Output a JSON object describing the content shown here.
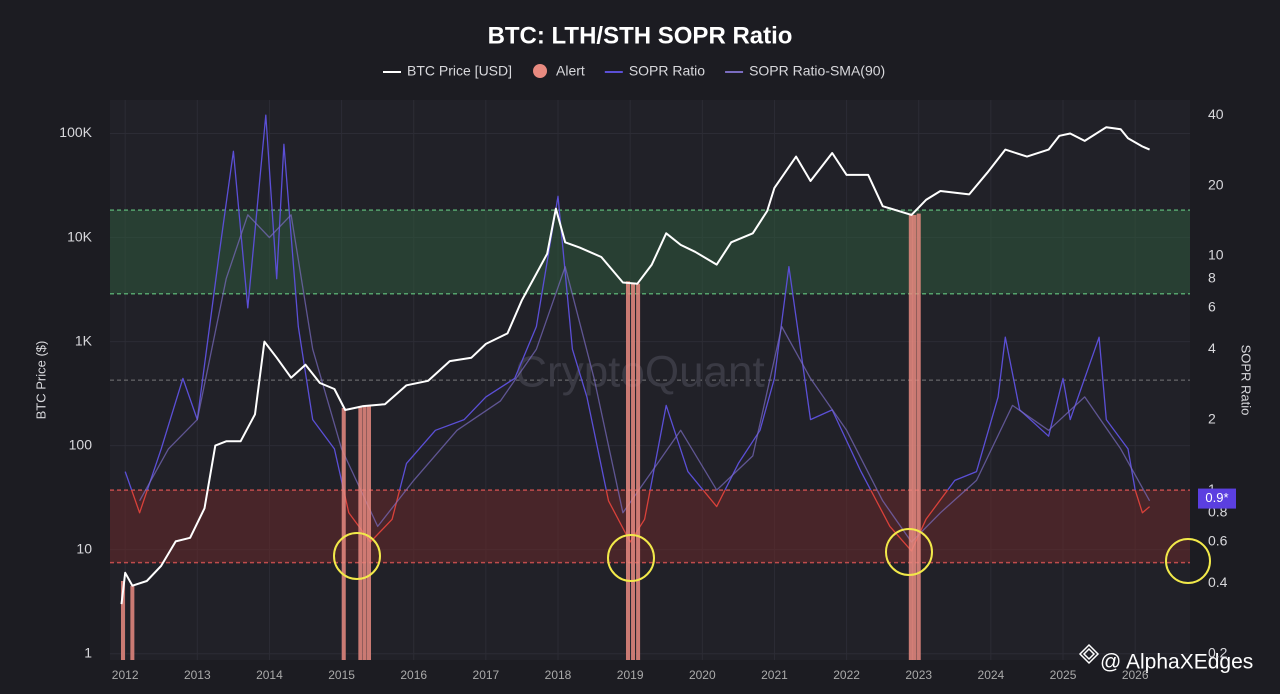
{
  "chart_data": {
    "type": "line",
    "title": "BTC: LTH/STH SOPR Ratio",
    "y_label": "BTC Price ($)",
    "y2_label": "SOPR Ratio",
    "watermark": "CryptoQuant",
    "credit": "@ AlphaXEdges",
    "log_scale": true,
    "xlim": [
      2011.79,
      2026.76
    ],
    "xticks": [
      2012,
      2013,
      2014,
      2015,
      2016,
      2017,
      2018,
      2019,
      2020,
      2021,
      2022,
      2023,
      2024,
      2025,
      2026
    ],
    "ylim": [
      0.87,
      210000
    ],
    "yticks": [
      1,
      10,
      100,
      {
        "value": 1000,
        "label": "1K"
      },
      {
        "value": 10000,
        "label": "10K"
      },
      {
        "value": 100000,
        "label": "100K"
      }
    ],
    "y2lim": [
      0.188,
      46.4
    ],
    "y2ticks": [
      0.2,
      0.4,
      0.6,
      0.8,
      1,
      2,
      4,
      6,
      8,
      10,
      20,
      40
    ],
    "current_label": {
      "value": 0.92,
      "label": "0.9*"
    },
    "bands": [
      {
        "from": 6.9,
        "to": 15.7,
        "color": "#2f5a3c"
      },
      {
        "from": 0.49,
        "to": 1.0,
        "color": "#6a2a2a"
      }
    ],
    "reference_lines": [
      2.95
    ],
    "series": [
      {
        "name": "BTC Price [USD]",
        "type": "line",
        "color": "#ffffff",
        "x": [
          2011.95,
          2012.0,
          2012.1,
          2012.3,
          2012.5,
          2012.7,
          2012.9,
          2013.1,
          2013.25,
          2013.4,
          2013.6,
          2013.8,
          2013.93,
          2014.1,
          2014.3,
          2014.5,
          2014.7,
          2014.9,
          2015.05,
          2015.3,
          2015.6,
          2015.9,
          2016.2,
          2016.5,
          2016.8,
          2017.0,
          2017.3,
          2017.5,
          2017.7,
          2017.85,
          2017.97,
          2018.1,
          2018.3,
          2018.6,
          2018.9,
          2019.1,
          2019.3,
          2019.5,
          2019.7,
          2019.9,
          2020.2,
          2020.4,
          2020.7,
          2020.9,
          2021.0,
          2021.3,
          2021.5,
          2021.8,
          2022.0,
          2022.3,
          2022.5,
          2022.9,
          2023.1,
          2023.3,
          2023.7,
          2023.95,
          2024.2,
          2024.5,
          2024.8,
          2024.95,
          2025.1,
          2025.3,
          2025.6,
          2025.8,
          2025.9,
          2026.1,
          2026.2
        ],
        "values": [
          3,
          6,
          4.5,
          5,
          7,
          12,
          13,
          25,
          100,
          110,
          110,
          200,
          1000,
          700,
          450,
          600,
          400,
          350,
          220,
          240,
          250,
          380,
          420,
          650,
          700,
          950,
          1200,
          2500,
          4500,
          7000,
          19000,
          9000,
          8000,
          6500,
          3700,
          3600,
          5500,
          11000,
          8500,
          7300,
          5500,
          9000,
          11000,
          18000,
          30000,
          60000,
          35000,
          65000,
          40000,
          40000,
          20000,
          16500,
          23000,
          28000,
          26000,
          42000,
          70000,
          60000,
          70000,
          95000,
          100000,
          85000,
          115000,
          110000,
          90000,
          75000,
          70000
        ]
      },
      {
        "name": "Alert",
        "type": "bar",
        "color": "#e88a80",
        "x": [
          2011.97,
          2012.1,
          2015.03,
          2015.26,
          2015.32,
          2015.38,
          2018.97,
          2019.04,
          2019.11,
          2022.89,
          2022.94,
          2023.0
        ],
        "values": [
          5,
          4.5,
          230,
          235,
          240,
          240,
          3800,
          3600,
          3600,
          17000,
          16500,
          17000
        ]
      },
      {
        "name": "SOPR Ratio",
        "type": "line",
        "axis": "y2",
        "color": "#5b4fd6",
        "low_color": "#d9413a",
        "x": [
          2012.0,
          2012.2,
          2012.5,
          2012.8,
          2013.0,
          2013.3,
          2013.5,
          2013.7,
          2013.95,
          2014.1,
          2014.2,
          2014.4,
          2014.6,
          2014.9,
          2015.1,
          2015.4,
          2015.7,
          2015.9,
          2016.3,
          2016.7,
          2017.0,
          2017.4,
          2017.7,
          2018.0,
          2018.2,
          2018.4,
          2018.7,
          2019.0,
          2019.2,
          2019.5,
          2019.8,
          2020.2,
          2020.5,
          2020.8,
          2021.0,
          2021.2,
          2021.5,
          2021.8,
          2022.2,
          2022.6,
          2022.9,
          2023.1,
          2023.5,
          2023.8,
          2024.1,
          2024.2,
          2024.4,
          2024.8,
          2025.0,
          2025.1,
          2025.5,
          2025.6,
          2025.9,
          2026.0,
          2026.1,
          2026.2
        ],
        "values": [
          1.2,
          0.8,
          1.5,
          3,
          2,
          10,
          28,
          6,
          40,
          8,
          30,
          5,
          2,
          1.5,
          0.8,
          0.6,
          0.75,
          1.3,
          1.8,
          2.0,
          2.5,
          3,
          5,
          18,
          4,
          2.5,
          0.9,
          0.6,
          0.75,
          2.3,
          1.2,
          0.85,
          1.3,
          1.8,
          3,
          9,
          2,
          2.2,
          1.2,
          0.7,
          0.55,
          0.75,
          1.1,
          1.2,
          2.5,
          4.5,
          2.2,
          1.7,
          3,
          2,
          4.5,
          2,
          1.5,
          1.0,
          0.8,
          0.85
        ]
      },
      {
        "name": "SOPR Ratio-SMA(90)",
        "type": "line",
        "axis": "y2",
        "color": "#7a6cc0",
        "x": [
          2012.2,
          2012.6,
          2013.0,
          2013.4,
          2013.7,
          2014.0,
          2014.3,
          2014.6,
          2015.0,
          2015.5,
          2016.0,
          2016.6,
          2017.2,
          2017.7,
          2018.1,
          2018.5,
          2018.9,
          2019.3,
          2019.7,
          2020.2,
          2020.7,
          2021.1,
          2021.5,
          2022.0,
          2022.5,
          2022.9,
          2023.3,
          2023.8,
          2024.3,
          2024.8,
          2025.3,
          2025.8,
          2026.2
        ],
        "values": [
          0.9,
          1.5,
          2.0,
          8,
          15,
          12,
          15,
          4,
          1.5,
          0.7,
          1.1,
          1.8,
          2.4,
          4,
          9,
          3,
          0.8,
          1.2,
          1.8,
          1.0,
          1.4,
          5,
          3,
          1.8,
          0.9,
          0.6,
          0.8,
          1.1,
          2.3,
          1.8,
          2.5,
          1.5,
          0.9
        ]
      }
    ]
  }
}
